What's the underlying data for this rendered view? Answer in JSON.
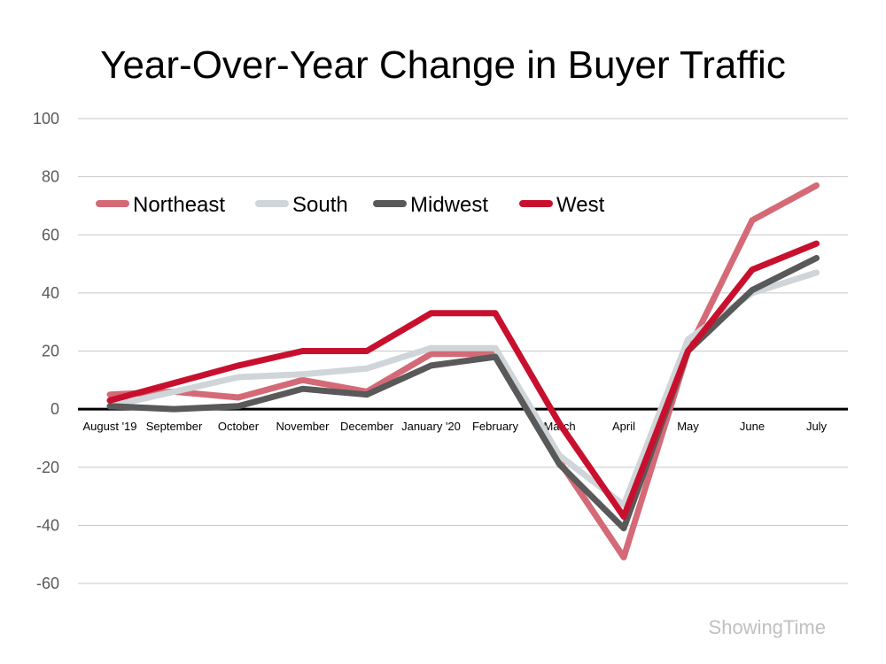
{
  "chart_data": {
    "type": "line",
    "title": "Year-Over-Year Change in Buyer Traffic",
    "xlabel": "",
    "ylabel": "",
    "ylim": [
      -60,
      100
    ],
    "yticks": [
      100,
      80,
      60,
      40,
      20,
      0,
      -20,
      -40,
      -60
    ],
    "grid": true,
    "legend_position": "top-left",
    "categories": [
      "August '19",
      "September",
      "October",
      "November",
      "December",
      "January '20",
      "February",
      "March",
      "April",
      "May",
      "June",
      "July"
    ],
    "series": [
      {
        "name": "Northeast",
        "color": "#d46a77",
        "values": [
          5,
          6,
          4,
          10,
          6,
          19,
          19,
          -18,
          -51,
          20,
          65,
          77
        ]
      },
      {
        "name": "South",
        "color": "#cfd5d8",
        "values": [
          1,
          6,
          11,
          12,
          14,
          21,
          21,
          -16,
          -33,
          24,
          40,
          47
        ]
      },
      {
        "name": "Midwest",
        "color": "#595959",
        "values": [
          1,
          0,
          1,
          7,
          5,
          15,
          18,
          -19,
          -41,
          20,
          41,
          52
        ]
      },
      {
        "name": "West",
        "color": "#c8102e",
        "values": [
          3,
          9,
          15,
          20,
          20,
          33,
          33,
          -5,
          -37,
          20,
          48,
          57
        ]
      }
    ]
  },
  "watermark": "ShowingTime"
}
